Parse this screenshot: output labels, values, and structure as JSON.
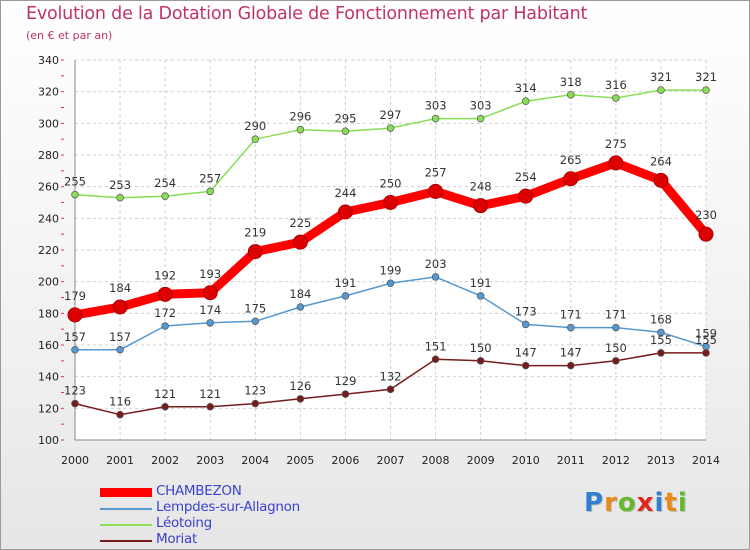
{
  "title": "Evolution de la Dotation Globale de Fonctionnement par Habitant",
  "subtitle": "(en € et par an)",
  "logo": {
    "letters": [
      "P",
      "r",
      "o",
      "x",
      "i",
      "t",
      "i"
    ],
    "colors": [
      "#2f7fd0",
      "#e88a1a",
      "#66b82e",
      "#e0261f",
      "#2f7fd0",
      "#e88a1a",
      "#66b82e"
    ]
  },
  "chart_data": {
    "type": "line",
    "title": "Evolution de la Dotation Globale de Fonctionnement par Habitant",
    "subtitle": "(en € et par an)",
    "x": [
      "2000",
      "2001",
      "2002",
      "2003",
      "2004",
      "2005",
      "2006",
      "2007",
      "2008",
      "2009",
      "2010",
      "2011",
      "2012",
      "2013",
      "2014"
    ],
    "ylim": [
      100,
      340
    ],
    "yticks": [
      "100",
      "120",
      "140",
      "160",
      "180",
      "200",
      "220",
      "240",
      "260",
      "280",
      "300",
      "320",
      "340"
    ],
    "grid": true,
    "legend_position": "bottom-left",
    "series": [
      {
        "name": "CHAMBEZON",
        "color": "#ff0000",
        "values": [
          179,
          184,
          192,
          193,
          219,
          225,
          244,
          250,
          257,
          248,
          254,
          265,
          275,
          264,
          230
        ]
      },
      {
        "name": "Lempdes-sur-Allagnon",
        "color": "#5599d0",
        "values": [
          157,
          157,
          172,
          174,
          175,
          184,
          191,
          199,
          203,
          191,
          173,
          171,
          171,
          168,
          159
        ]
      },
      {
        "name": "Léotoing",
        "color": "#88dd55",
        "values": [
          255,
          253,
          254,
          257,
          290,
          296,
          295,
          297,
          303,
          303,
          314,
          318,
          316,
          321,
          321
        ]
      },
      {
        "name": "Moriat",
        "color": "#771c1c",
        "values": [
          123,
          116,
          121,
          121,
          123,
          126,
          129,
          132,
          151,
          150,
          147,
          147,
          150,
          155,
          155
        ]
      }
    ]
  }
}
